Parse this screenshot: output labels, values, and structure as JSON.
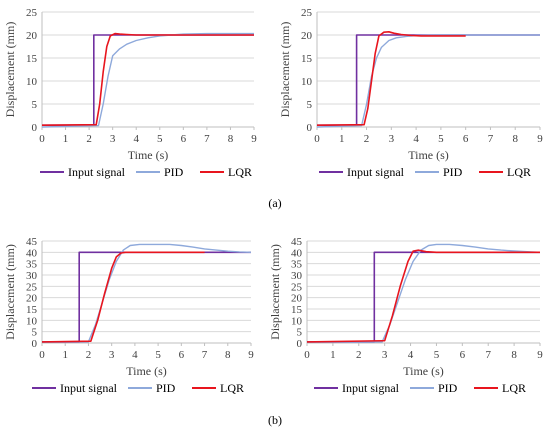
{
  "panels": [
    {
      "label": "(a)"
    },
    {
      "label": "(b)"
    }
  ],
  "colors": {
    "input": "#7030A0",
    "pid": "#8EA9DB",
    "lqr": "#E8151E",
    "grid": "#d9d9d9",
    "axis": "#bfbfbf",
    "text": "#404040"
  },
  "chart_data": [
    {
      "type": "line",
      "xlabel": "Time (s)",
      "ylabel": "Displacement (mm)",
      "xlim": [
        0,
        9
      ],
      "ylim": [
        0,
        25
      ],
      "xticks": [
        "0",
        "1",
        "2",
        "3",
        "4",
        "5",
        "6",
        "7",
        "8",
        "9"
      ],
      "yticks": [
        "0",
        "5",
        "10",
        "15",
        "20",
        "25"
      ],
      "grid": true,
      "legend": "bottom",
      "series": [
        {
          "name": "Input signal",
          "x": [
            0,
            2.2,
            2.2,
            9
          ],
          "y": [
            0.4,
            0.4,
            20,
            20
          ]
        },
        {
          "name": "PID",
          "x": [
            0,
            2.4,
            2.6,
            2.8,
            3.0,
            3.3,
            3.6,
            4.0,
            4.5,
            5.0,
            5.5,
            6.0,
            7.0,
            8.0,
            9.0
          ],
          "y": [
            0,
            0.3,
            5,
            11,
            15.5,
            17,
            18,
            18.8,
            19.4,
            19.8,
            20,
            20.2,
            20.3,
            20.3,
            20.3
          ]
        },
        {
          "name": "LQR",
          "x": [
            0,
            2.3,
            2.45,
            2.6,
            2.75,
            2.9,
            3.1,
            3.3,
            3.6,
            4.0,
            5.0,
            6.0,
            7.0,
            8.0,
            9.0
          ],
          "y": [
            0.4,
            0.5,
            5,
            12,
            17.5,
            19.8,
            20.3,
            20.2,
            20.1,
            20,
            20,
            20,
            20,
            20,
            20
          ]
        }
      ]
    },
    {
      "type": "line",
      "xlabel": "Time (s)",
      "ylabel": "Displacement (mm)",
      "xlim": [
        0,
        9
      ],
      "ylim": [
        0,
        25
      ],
      "xticks": [
        "0",
        "1",
        "2",
        "3",
        "4",
        "5",
        "6",
        "7",
        "8",
        "9"
      ],
      "yticks": [
        "0",
        "5",
        "10",
        "15",
        "20",
        "25"
      ],
      "grid": true,
      "legend": "bottom",
      "series": [
        {
          "name": "Input signal",
          "x": [
            0,
            1.6,
            1.6,
            9
          ],
          "y": [
            0.4,
            0.4,
            20,
            20
          ]
        },
        {
          "name": "PID",
          "x": [
            0,
            1.8,
            2.0,
            2.2,
            2.4,
            2.6,
            2.9,
            3.2,
            3.6,
            4.0,
            5.0,
            6.0,
            7.0,
            8.0,
            9.0
          ],
          "y": [
            0,
            0.3,
            5,
            11,
            15,
            17.3,
            18.8,
            19.4,
            19.7,
            19.9,
            20,
            20,
            20,
            20,
            20
          ]
        },
        {
          "name": "LQR",
          "x": [
            0,
            1.9,
            2.05,
            2.2,
            2.35,
            2.5,
            2.7,
            2.9,
            3.1,
            3.4,
            3.8,
            4.2,
            5.0,
            6.0
          ],
          "y": [
            0.4,
            0.5,
            4,
            10,
            16,
            19.8,
            20.6,
            20.7,
            20.4,
            20.1,
            19.9,
            19.8,
            19.8,
            19.8
          ]
        }
      ]
    },
    {
      "type": "line",
      "xlabel": "Time (s)",
      "ylabel": "Displacement (mm)",
      "xlim": [
        0,
        9
      ],
      "ylim": [
        0,
        45
      ],
      "xticks": [
        "0",
        "1",
        "2",
        "3",
        "4",
        "5",
        "6",
        "7",
        "8",
        "9"
      ],
      "yticks": [
        "0",
        "5",
        "10",
        "15",
        "20",
        "25",
        "30",
        "35",
        "40",
        "45"
      ],
      "grid": true,
      "legend": "bottom",
      "series": [
        {
          "name": "Input signal",
          "x": [
            0,
            1.6,
            1.6,
            9
          ],
          "y": [
            0.5,
            0.5,
            40,
            40
          ]
        },
        {
          "name": "PID",
          "x": [
            0,
            2.0,
            2.3,
            2.6,
            2.9,
            3.2,
            3.5,
            3.8,
            4.2,
            4.6,
            5.0,
            5.5,
            6.0,
            6.5,
            7.0,
            7.5,
            8.0,
            8.5,
            9.0
          ],
          "y": [
            0.3,
            0.5,
            8,
            18,
            28,
            36,
            41,
            43,
            43.5,
            43.5,
            43.5,
            43.5,
            43,
            42.3,
            41.5,
            41,
            40.5,
            40.2,
            40
          ]
        },
        {
          "name": "LQR",
          "x": [
            0,
            2.1,
            2.4,
            2.7,
            3.0,
            3.2,
            3.4,
            3.6,
            4.0,
            5.0,
            6.0,
            7.0
          ],
          "y": [
            0.5,
            0.8,
            10,
            22,
            33,
            38,
            39.7,
            40,
            40,
            40,
            40,
            40
          ]
        }
      ]
    },
    {
      "type": "line",
      "xlabel": "Time (s)",
      "ylabel": "Displacement (mm)",
      "xlim": [
        0,
        9
      ],
      "ylim": [
        0,
        45
      ],
      "xticks": [
        "0",
        "1",
        "2",
        "3",
        "4",
        "5",
        "6",
        "7",
        "8",
        "9"
      ],
      "yticks": [
        "0",
        "5",
        "10",
        "15",
        "20",
        "25",
        "30",
        "35",
        "40",
        "45"
      ],
      "grid": true,
      "legend": "bottom",
      "series": [
        {
          "name": "Input signal",
          "x": [
            0,
            2.6,
            2.6,
            9
          ],
          "y": [
            0.5,
            0.5,
            40,
            40
          ]
        },
        {
          "name": "PID",
          "x": [
            0,
            2.9,
            3.2,
            3.5,
            3.8,
            4.1,
            4.4,
            4.7,
            5.0,
            5.5,
            6.0,
            6.5,
            7.0,
            7.5,
            8.0,
            8.5,
            9.0
          ],
          "y": [
            0.3,
            0.5,
            8,
            18,
            28,
            36,
            41,
            43,
            43.5,
            43.5,
            43,
            42.3,
            41.5,
            41,
            40.6,
            40.3,
            40
          ]
        },
        {
          "name": "LQR",
          "x": [
            0,
            3.0,
            3.3,
            3.6,
            3.9,
            4.1,
            4.3,
            4.6,
            5.0,
            6.0,
            7.0,
            8.0,
            9.0
          ],
          "y": [
            0.5,
            1,
            12,
            25,
            36,
            40.5,
            41,
            40.3,
            40,
            40,
            40,
            40,
            40
          ]
        }
      ]
    }
  ]
}
